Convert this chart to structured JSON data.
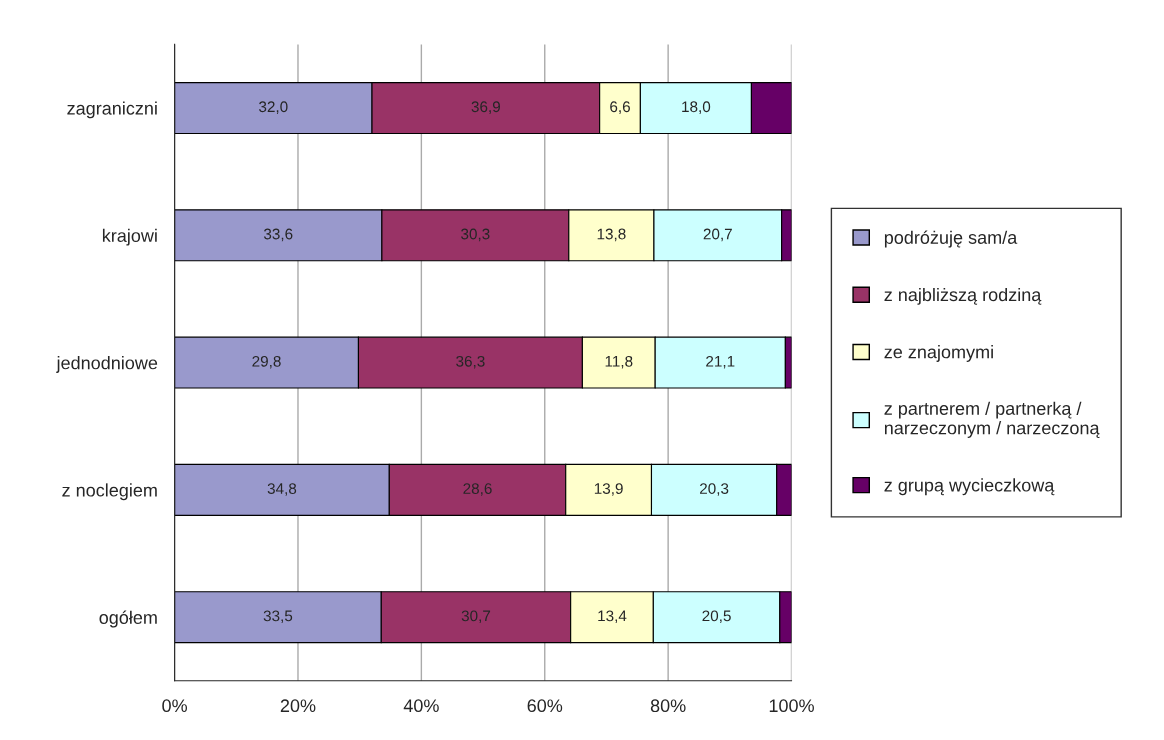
{
  "chart_data": {
    "type": "bar",
    "orientation": "horizontal",
    "stacked": true,
    "categories": [
      "zagraniczni",
      "krajowi",
      "jednodniowe",
      "z noclegiem",
      "ogółem"
    ],
    "series": [
      {
        "name": "podróżuję sam/a",
        "color": "#9999cc",
        "values": [
          32.0,
          33.6,
          29.8,
          34.8,
          33.5
        ],
        "value_labels": [
          "32,0",
          "33,6",
          "29,8",
          "34,8",
          "33,5"
        ]
      },
      {
        "name": "z najbliższą rodziną",
        "color": "#993366",
        "values": [
          36.9,
          30.3,
          36.3,
          28.6,
          30.7
        ],
        "value_labels": [
          "36,9",
          "30,3",
          "36,3",
          "28,6",
          "30,7"
        ]
      },
      {
        "name": "ze znajomymi",
        "color": "#ffffcc",
        "values": [
          6.6,
          13.8,
          11.8,
          13.9,
          13.4
        ],
        "value_labels": [
          "6,6",
          "13,8",
          "11,8",
          "13,9",
          "13,4"
        ]
      },
      {
        "name": "z partnerem / partnerką /\nnarzeczonym / narzeczoną",
        "color": "#ccffff",
        "values": [
          18.0,
          20.7,
          21.1,
          20.3,
          20.5
        ],
        "value_labels": [
          "18,0",
          "20,7",
          "21,1",
          "20,3",
          "20,5"
        ]
      },
      {
        "name": "z grupą wycieczkową",
        "color": "#660066",
        "values": [
          6.5,
          1.6,
          1.0,
          2.4,
          1.9
        ]
      }
    ],
    "xlim": [
      0,
      100
    ],
    "xticks": [
      {
        "value": 0,
        "label": "0%"
      },
      {
        "value": 20,
        "label": "20%"
      },
      {
        "value": 40,
        "label": "40%"
      },
      {
        "value": 60,
        "label": "60%"
      },
      {
        "value": 80,
        "label": "80%"
      },
      {
        "value": 100,
        "label": "100%"
      }
    ],
    "grid": "x",
    "legend": "right"
  }
}
